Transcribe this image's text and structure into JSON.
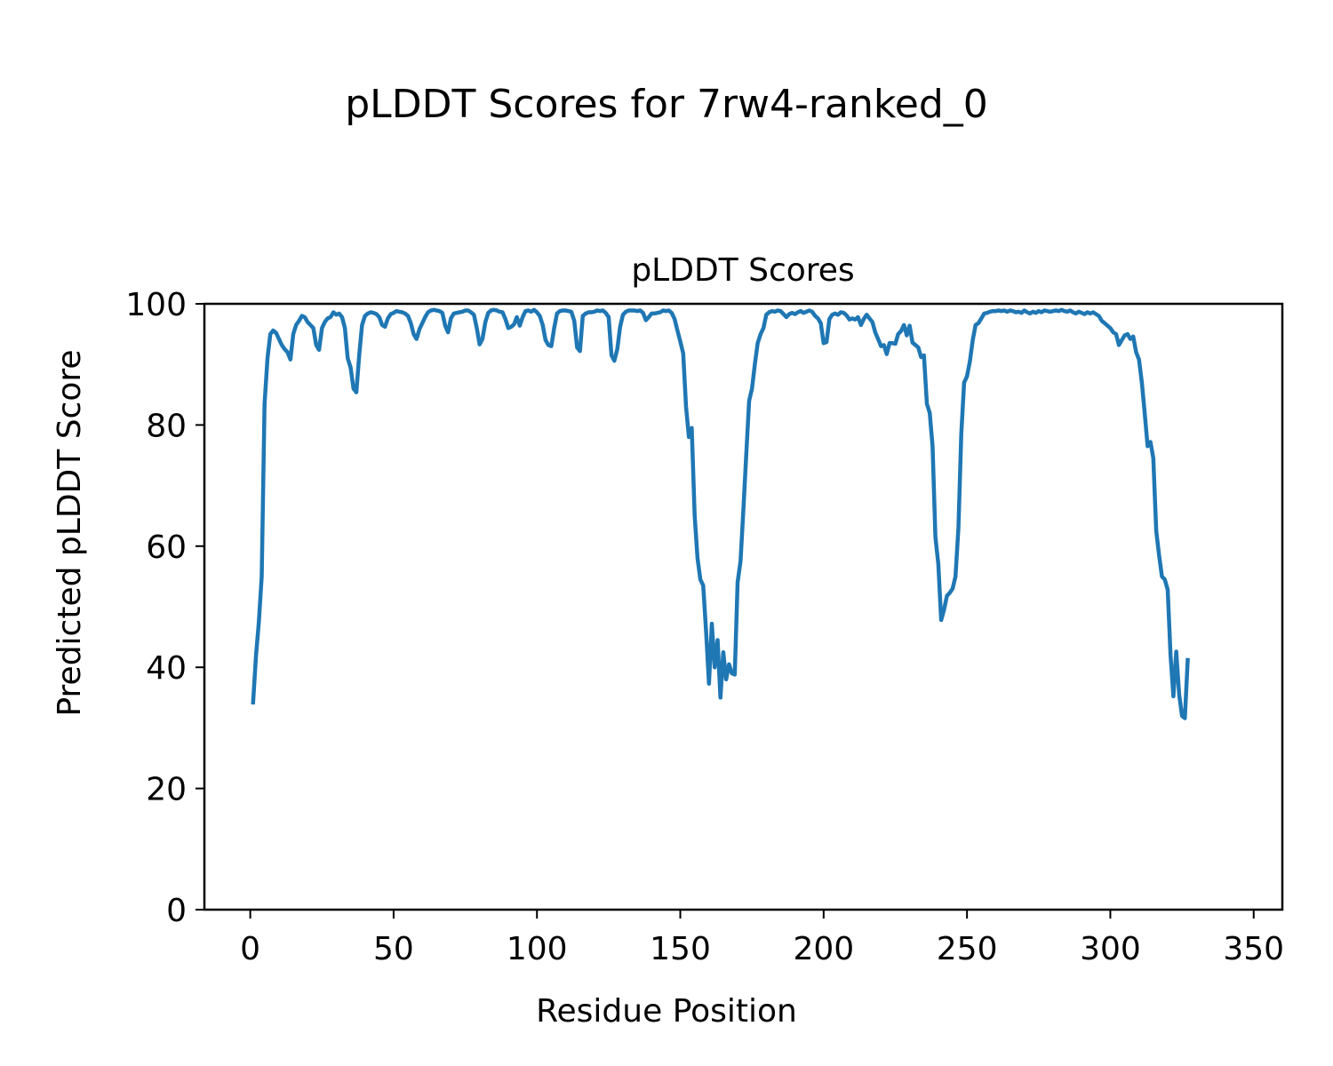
{
  "figure": {
    "suptitle": "pLDDT Scores for 7rw4-ranked_0"
  },
  "chart_data": {
    "type": "line",
    "title": "pLDDT Scores",
    "xlabel": "Residue Position",
    "ylabel": "Predicted pLDDT Score",
    "xlim": [
      -16,
      360
    ],
    "ylim": [
      0,
      100
    ],
    "xticks": [
      0,
      50,
      100,
      150,
      200,
      250,
      300,
      350
    ],
    "yticks": [
      0,
      20,
      40,
      60,
      80,
      100
    ],
    "grid": false,
    "legend": "none",
    "series": [
      {
        "color": "#1f77b4",
        "points": [
          [
            1,
            34.2
          ],
          [
            2,
            42.0
          ],
          [
            3,
            47.5
          ],
          [
            4,
            55.0
          ],
          [
            5,
            83.5
          ],
          [
            6,
            91.0
          ],
          [
            7,
            95.0
          ],
          [
            8,
            95.6
          ],
          [
            9,
            95.2
          ],
          [
            10,
            94.2
          ],
          [
            11,
            93.2
          ],
          [
            12,
            92.5
          ],
          [
            13,
            92.0
          ],
          [
            14,
            90.8
          ],
          [
            15,
            95.0
          ],
          [
            16,
            96.5
          ],
          [
            17,
            97.2
          ],
          [
            18,
            98.0
          ],
          [
            19,
            97.8
          ],
          [
            20,
            97.0
          ],
          [
            21,
            96.5
          ],
          [
            22,
            96.0
          ],
          [
            23,
            93.2
          ],
          [
            24,
            92.4
          ],
          [
            25,
            96.0
          ],
          [
            26,
            97.0
          ],
          [
            27,
            97.6
          ],
          [
            28,
            97.8
          ],
          [
            29,
            98.6
          ],
          [
            30,
            98.2
          ],
          [
            31,
            98.4
          ],
          [
            32,
            97.8
          ],
          [
            33,
            96.0
          ],
          [
            34,
            91.0
          ],
          [
            35,
            89.5
          ],
          [
            36,
            86.0
          ],
          [
            37,
            85.4
          ],
          [
            38,
            91.5
          ],
          [
            39,
            96.5
          ],
          [
            40,
            98.0
          ],
          [
            41,
            98.4
          ],
          [
            42,
            98.6
          ],
          [
            43,
            98.5
          ],
          [
            44,
            98.3
          ],
          [
            45,
            97.8
          ],
          [
            46,
            96.5
          ],
          [
            47,
            96.2
          ],
          [
            48,
            97.6
          ],
          [
            49,
            98.3
          ],
          [
            50,
            98.5
          ],
          [
            51,
            98.8
          ],
          [
            52,
            98.7
          ],
          [
            53,
            98.6
          ],
          [
            54,
            98.4
          ],
          [
            55,
            98.0
          ],
          [
            56,
            96.8
          ],
          [
            57,
            95.0
          ],
          [
            58,
            94.2
          ],
          [
            59,
            95.8
          ],
          [
            60,
            96.8
          ],
          [
            61,
            97.8
          ],
          [
            62,
            98.6
          ],
          [
            63,
            98.9
          ],
          [
            64,
            99.0
          ],
          [
            65,
            98.9
          ],
          [
            66,
            98.8
          ],
          [
            67,
            98.5
          ],
          [
            68,
            96.4
          ],
          [
            69,
            95.3
          ],
          [
            70,
            97.6
          ],
          [
            71,
            98.4
          ],
          [
            72,
            98.5
          ],
          [
            73,
            98.6
          ],
          [
            74,
            98.7
          ],
          [
            75,
            98.9
          ],
          [
            76,
            98.9
          ],
          [
            77,
            98.6
          ],
          [
            78,
            98.2
          ],
          [
            79,
            96.0
          ],
          [
            80,
            93.3
          ],
          [
            81,
            94.2
          ],
          [
            82,
            97.0
          ],
          [
            83,
            98.5
          ],
          [
            84,
            98.9
          ],
          [
            85,
            99.0
          ],
          [
            86,
            98.9
          ],
          [
            87,
            98.7
          ],
          [
            88,
            98.6
          ],
          [
            89,
            97.5
          ],
          [
            90,
            96.0
          ],
          [
            91,
            96.2
          ],
          [
            92,
            96.6
          ],
          [
            93,
            97.8
          ],
          [
            94,
            96.4
          ],
          [
            95,
            97.8
          ],
          [
            96,
            98.8
          ],
          [
            97,
            98.9
          ],
          [
            98,
            98.7
          ],
          [
            99,
            99.0
          ],
          [
            100,
            98.6
          ],
          [
            101,
            98.0
          ],
          [
            102,
            96.5
          ],
          [
            103,
            94.0
          ],
          [
            104,
            93.2
          ],
          [
            105,
            93.0
          ],
          [
            106,
            96.0
          ],
          [
            107,
            98.4
          ],
          [
            108,
            98.8
          ],
          [
            109,
            98.9
          ],
          [
            110,
            98.9
          ],
          [
            111,
            98.8
          ],
          [
            112,
            98.7
          ],
          [
            113,
            97.2
          ],
          [
            114,
            92.8
          ],
          [
            115,
            92.2
          ],
          [
            116,
            98.0
          ],
          [
            117,
            98.4
          ],
          [
            118,
            98.6
          ],
          [
            119,
            98.6
          ],
          [
            120,
            98.7
          ],
          [
            121,
            98.9
          ],
          [
            122,
            98.8
          ],
          [
            123,
            98.9
          ],
          [
            124,
            98.5
          ],
          [
            125,
            97.8
          ],
          [
            126,
            91.5
          ],
          [
            127,
            90.6
          ],
          [
            128,
            92.5
          ],
          [
            129,
            96.2
          ],
          [
            130,
            98.2
          ],
          [
            131,
            98.7
          ],
          [
            132,
            98.9
          ],
          [
            133,
            98.9
          ],
          [
            134,
            98.9
          ],
          [
            135,
            98.8
          ],
          [
            136,
            98.9
          ],
          [
            137,
            98.5
          ],
          [
            138,
            97.3
          ],
          [
            139,
            97.8
          ],
          [
            140,
            98.4
          ],
          [
            141,
            98.4
          ],
          [
            142,
            98.5
          ],
          [
            143,
            98.6
          ],
          [
            144,
            98.9
          ],
          [
            145,
            98.8
          ],
          [
            146,
            98.9
          ],
          [
            147,
            98.5
          ],
          [
            148,
            97.5
          ],
          [
            149,
            95.6
          ],
          [
            150,
            93.8
          ],
          [
            151,
            91.8
          ],
          [
            152,
            83.0
          ],
          [
            153,
            78.0
          ],
          [
            154,
            79.5
          ],
          [
            155,
            65.0
          ],
          [
            156,
            58.0
          ],
          [
            157,
            54.5
          ],
          [
            158,
            53.5
          ],
          [
            159,
            45.8
          ],
          [
            160,
            37.3
          ],
          [
            161,
            47.2
          ],
          [
            162,
            40.0
          ],
          [
            163,
            44.5
          ],
          [
            164,
            35.0
          ],
          [
            165,
            42.5
          ],
          [
            166,
            38.0
          ],
          [
            167,
            40.5
          ],
          [
            168,
            39.0
          ],
          [
            169,
            38.8
          ],
          [
            170,
            54.0
          ],
          [
            171,
            57.5
          ],
          [
            172,
            66.0
          ],
          [
            173,
            75.0
          ],
          [
            174,
            84.0
          ],
          [
            175,
            86.0
          ],
          [
            176,
            90.0
          ],
          [
            177,
            93.5
          ],
          [
            178,
            95.0
          ],
          [
            179,
            96.0
          ],
          [
            180,
            98.2
          ],
          [
            181,
            98.6
          ],
          [
            182,
            98.8
          ],
          [
            183,
            98.7
          ],
          [
            184,
            98.9
          ],
          [
            185,
            98.8
          ],
          [
            186,
            98.3
          ],
          [
            187,
            97.8
          ],
          [
            188,
            98.3
          ],
          [
            189,
            98.5
          ],
          [
            190,
            98.3
          ],
          [
            191,
            98.6
          ],
          [
            192,
            98.8
          ],
          [
            193,
            98.5
          ],
          [
            194,
            98.7
          ],
          [
            195,
            98.9
          ],
          [
            196,
            98.7
          ],
          [
            197,
            98.0
          ],
          [
            198,
            97.6
          ],
          [
            199,
            96.8
          ],
          [
            200,
            93.5
          ],
          [
            201,
            93.7
          ],
          [
            202,
            97.5
          ],
          [
            203,
            98.2
          ],
          [
            204,
            98.4
          ],
          [
            205,
            98.2
          ],
          [
            206,
            98.6
          ],
          [
            207,
            98.5
          ],
          [
            208,
            98.1
          ],
          [
            209,
            97.4
          ],
          [
            210,
            97.6
          ],
          [
            211,
            97.4
          ],
          [
            212,
            97.8
          ],
          [
            213,
            96.5
          ],
          [
            214,
            97.5
          ],
          [
            215,
            98.2
          ],
          [
            216,
            97.6
          ],
          [
            217,
            97.0
          ],
          [
            218,
            95.3
          ],
          [
            219,
            94.2
          ],
          [
            220,
            93.0
          ],
          [
            221,
            93.2
          ],
          [
            222,
            91.7
          ],
          [
            223,
            93.5
          ],
          [
            224,
            93.5
          ],
          [
            225,
            93.4
          ],
          [
            226,
            95.0
          ],
          [
            227,
            95.5
          ],
          [
            228,
            96.5
          ],
          [
            229,
            94.8
          ],
          [
            230,
            96.4
          ],
          [
            231,
            93.6
          ],
          [
            232,
            93.2
          ],
          [
            233,
            92.8
          ],
          [
            234,
            91.2
          ],
          [
            235,
            91.5
          ],
          [
            236,
            83.5
          ],
          [
            237,
            82.0
          ],
          [
            238,
            76.5
          ],
          [
            239,
            61.5
          ],
          [
            240,
            57.0
          ],
          [
            241,
            47.8
          ],
          [
            242,
            49.5
          ],
          [
            243,
            51.8
          ],
          [
            244,
            52.3
          ],
          [
            245,
            53.0
          ],
          [
            246,
            55.0
          ],
          [
            247,
            63.0
          ],
          [
            248,
            78.5
          ],
          [
            249,
            87.0
          ],
          [
            250,
            88.0
          ],
          [
            251,
            90.5
          ],
          [
            252,
            94.0
          ],
          [
            253,
            96.5
          ],
          [
            254,
            96.8
          ],
          [
            255,
            97.6
          ],
          [
            256,
            98.4
          ],
          [
            257,
            98.5
          ],
          [
            258,
            98.7
          ],
          [
            259,
            98.8
          ],
          [
            260,
            98.8
          ],
          [
            261,
            98.9
          ],
          [
            262,
            98.8
          ],
          [
            263,
            98.9
          ],
          [
            264,
            98.7
          ],
          [
            265,
            98.9
          ],
          [
            266,
            98.8
          ],
          [
            267,
            98.6
          ],
          [
            268,
            98.7
          ],
          [
            269,
            98.5
          ],
          [
            270,
            98.9
          ],
          [
            271,
            98.6
          ],
          [
            272,
            98.4
          ],
          [
            273,
            98.7
          ],
          [
            274,
            98.5
          ],
          [
            275,
            98.8
          ],
          [
            276,
            98.6
          ],
          [
            277,
            98.9
          ],
          [
            278,
            98.8
          ],
          [
            279,
            98.7
          ],
          [
            280,
            98.8
          ],
          [
            281,
            98.9
          ],
          [
            282,
            98.8
          ],
          [
            283,
            99.0
          ],
          [
            284,
            98.8
          ],
          [
            285,
            98.7
          ],
          [
            286,
            98.9
          ],
          [
            287,
            98.6
          ],
          [
            288,
            98.4
          ],
          [
            289,
            98.7
          ],
          [
            290,
            98.5
          ],
          [
            291,
            98.3
          ],
          [
            292,
            98.6
          ],
          [
            293,
            98.4
          ],
          [
            294,
            98.6
          ],
          [
            295,
            98.3
          ],
          [
            296,
            98.0
          ],
          [
            297,
            97.2
          ],
          [
            298,
            96.8
          ],
          [
            299,
            96.4
          ],
          [
            300,
            96.0
          ],
          [
            301,
            95.3
          ],
          [
            302,
            95.0
          ],
          [
            303,
            93.2
          ],
          [
            304,
            94.0
          ],
          [
            305,
            94.8
          ],
          [
            306,
            95.0
          ],
          [
            307,
            94.2
          ],
          [
            308,
            94.6
          ],
          [
            309,
            92.0
          ],
          [
            310,
            90.8
          ],
          [
            311,
            87.0
          ],
          [
            312,
            82.0
          ],
          [
            313,
            76.5
          ],
          [
            314,
            77.2
          ],
          [
            315,
            74.5
          ],
          [
            316,
            62.5
          ],
          [
            317,
            58.5
          ],
          [
            318,
            55.0
          ],
          [
            319,
            54.5
          ],
          [
            320,
            52.8
          ],
          [
            321,
            42.0
          ],
          [
            322,
            35.2
          ],
          [
            323,
            42.6
          ],
          [
            324,
            35.5
          ],
          [
            325,
            32.0
          ],
          [
            326,
            31.6
          ],
          [
            327,
            41.2
          ]
        ]
      }
    ]
  }
}
